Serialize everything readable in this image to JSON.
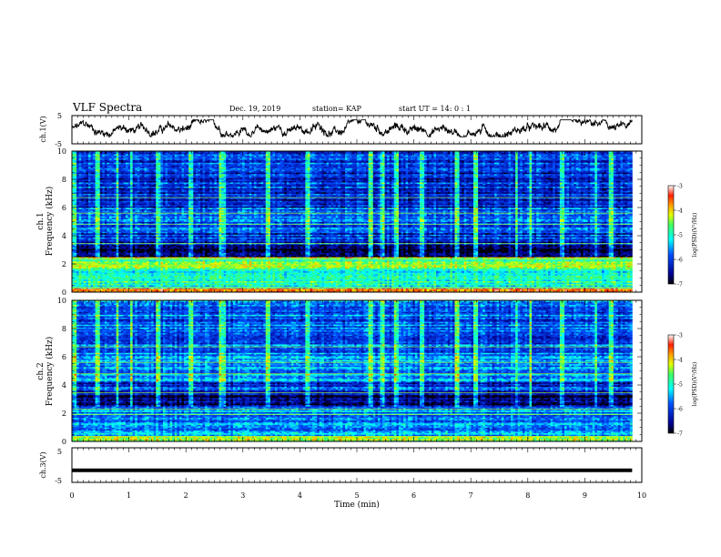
{
  "header": {
    "title": "VLF Spectra",
    "date": "Dec. 19, 2019",
    "station": "station= KAP",
    "start": "start  UT =   14: 0  : 1"
  },
  "chart_data": [
    {
      "type": "line",
      "panel": "ch1-waveform",
      "ylabel": "ch.1(V)",
      "ylim": [
        -5,
        5
      ],
      "yticks": [
        "5",
        "-5"
      ],
      "xlim": [
        0,
        10
      ],
      "data_extent_min": [
        0,
        9.83
      ],
      "description_level": "noisy waveform oscillating roughly between -2 and 3 V"
    },
    {
      "type": "heatmap",
      "panel": "ch1-spectrogram",
      "ylabel_lines": [
        "ch.1",
        "Frequency  (kHz)"
      ],
      "ylim": [
        0,
        10
      ],
      "yticks": [
        "0",
        "2",
        "4",
        "6",
        "8",
        "10"
      ],
      "xlim": [
        0,
        10
      ],
      "colorbar": {
        "label": "log(PSD)(V²/Hz)",
        "range": [
          -7,
          -3
        ],
        "ticks": [
          "-3",
          "-4",
          "-5",
          "-6",
          "-7"
        ]
      },
      "band_levels": [
        {
          "f": [
            0.0,
            0.3
          ],
          "level": 0.8
        },
        {
          "f": [
            0.3,
            1.6
          ],
          "level": 0.5
        },
        {
          "f": [
            1.6,
            2.5
          ],
          "level": 0.62
        },
        {
          "f": [
            2.5,
            3.4
          ],
          "level": 0.12
        },
        {
          "f": [
            3.4,
            4.2
          ],
          "level": 0.22
        },
        {
          "f": [
            4.2,
            6.0
          ],
          "level": 0.33
        },
        {
          "f": [
            6.0,
            10.0
          ],
          "level": 0.22
        }
      ],
      "vertical_bursts_min": [
        0.05,
        0.45,
        0.8,
        1.05,
        1.52,
        2.1,
        2.6,
        2.65,
        3.45,
        4.15,
        5.25,
        5.45,
        5.7,
        6.15,
        6.75,
        7.1,
        7.8,
        8.05,
        8.6,
        9.2,
        9.45
      ]
    },
    {
      "type": "heatmap",
      "panel": "ch2-spectrogram",
      "ylabel_lines": [
        "ch.2",
        "Frequency  (kHz)"
      ],
      "ylim": [
        0,
        10
      ],
      "yticks": [
        "0",
        "2",
        "4",
        "6",
        "8",
        "10"
      ],
      "xlim": [
        0,
        10
      ],
      "colorbar": {
        "label": "log(PSD)(V²/Hz)",
        "range": [
          -7,
          -3
        ],
        "ticks": [
          "-3",
          "-4",
          "-5",
          "-6",
          "-7"
        ]
      },
      "band_levels": [
        {
          "f": [
            0.0,
            0.4
          ],
          "level": 0.62
        },
        {
          "f": [
            0.4,
            2.5
          ],
          "level": 0.35
        },
        {
          "f": [
            2.5,
            3.4
          ],
          "level": 0.1
        },
        {
          "f": [
            3.4,
            4.2
          ],
          "level": 0.22
        },
        {
          "f": [
            4.2,
            6.0
          ],
          "level": 0.36
        },
        {
          "f": [
            6.0,
            10.0
          ],
          "level": 0.3
        }
      ],
      "vertical_bursts_min": [
        0.05,
        0.45,
        0.8,
        1.05,
        1.52,
        2.1,
        2.6,
        2.65,
        3.45,
        4.15,
        5.25,
        5.45,
        5.7,
        6.15,
        6.75,
        7.1,
        7.8,
        8.05,
        8.6,
        9.2,
        9.45
      ]
    },
    {
      "type": "line",
      "panel": "ch3-waveform",
      "ylabel": "ch.3(V)",
      "ylim": [
        -5,
        5
      ],
      "yticks": [
        "5",
        "-5"
      ],
      "xlim": [
        0,
        10
      ],
      "constant_value_V": -1.5,
      "x_label": "Time  (min)",
      "xticks": [
        "0",
        "1",
        "2",
        "3",
        "4",
        "5",
        "6",
        "7",
        "8",
        "9",
        "10"
      ]
    }
  ]
}
